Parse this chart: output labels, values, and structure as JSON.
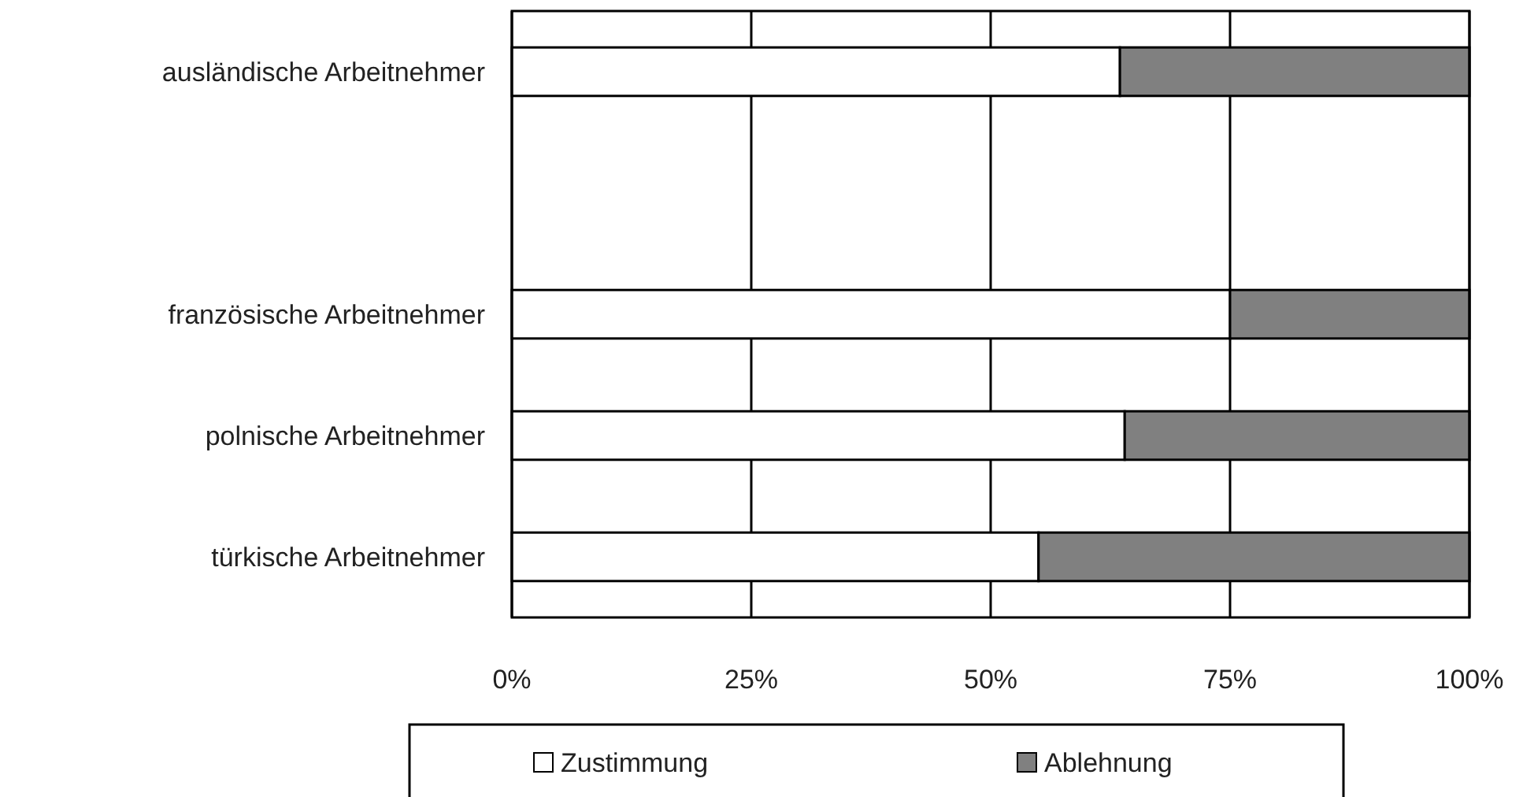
{
  "chart_data": {
    "type": "bar",
    "orientation": "horizontal",
    "stacked": true,
    "categories": [
      "ausländische Arbeitnehmer",
      null,
      "französische Arbeitnehmer",
      "polnische Arbeitnehmer",
      "türkische Arbeitnehmer"
    ],
    "series": [
      {
        "name": "Zustimmung",
        "color": "#ffffff",
        "values": [
          63.5,
          null,
          75,
          64,
          55
        ]
      },
      {
        "name": "Ablehnung",
        "color": "#808080",
        "values": [
          36.5,
          null,
          25,
          36,
          45
        ]
      }
    ],
    "xlim": [
      0,
      100
    ],
    "xticks": [
      {
        "value": 0,
        "label": "0%"
      },
      {
        "value": 25,
        "label": "25%"
      },
      {
        "value": 50,
        "label": "50%"
      },
      {
        "value": 75,
        "label": "75%"
      },
      {
        "value": 100,
        "label": "100%"
      }
    ],
    "grid": "x",
    "legend": "bottom"
  }
}
